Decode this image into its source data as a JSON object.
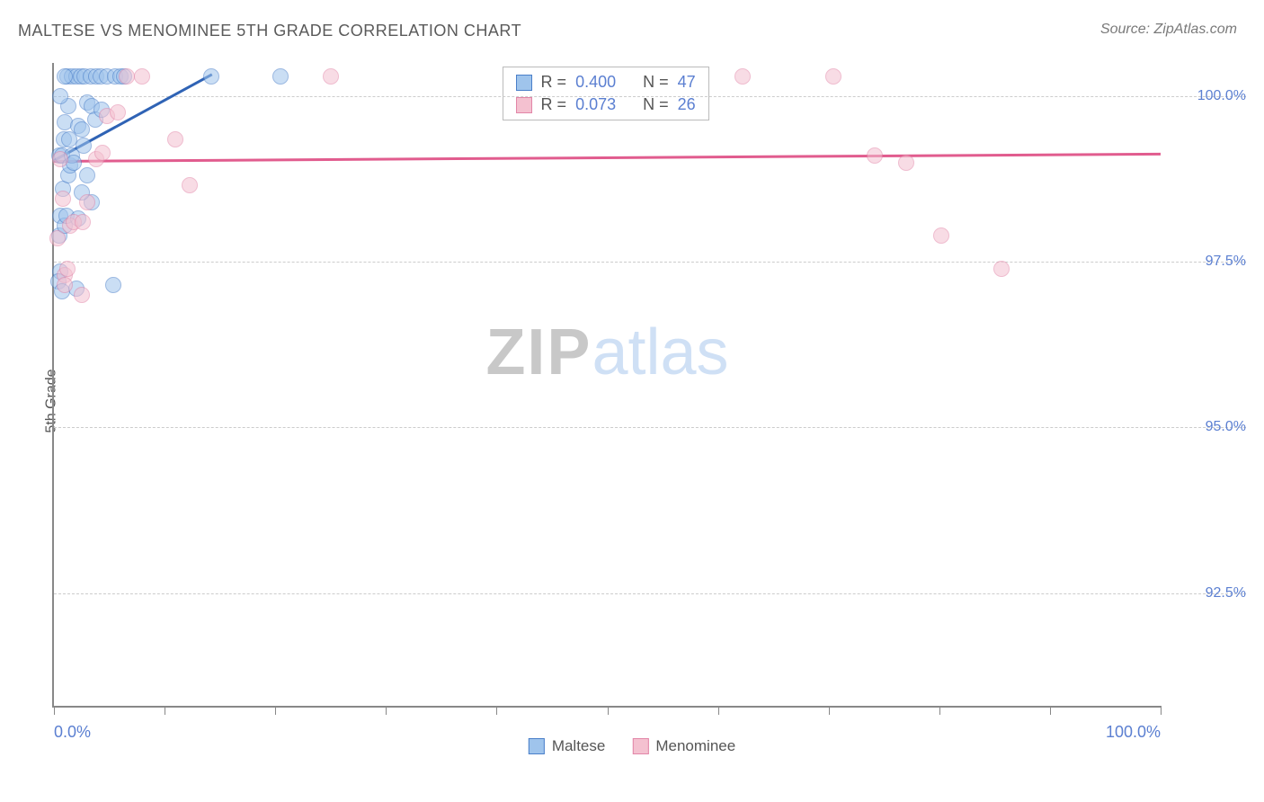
{
  "title": "MALTESE VS MENOMINEE 5TH GRADE CORRELATION CHART",
  "source": "Source: ZipAtlas.com",
  "ylabel": "5th Grade",
  "watermark": {
    "part1": "ZIP",
    "part2": "atlas"
  },
  "chart": {
    "type": "scatter",
    "background_color": "#ffffff",
    "grid_color": "#cccccc",
    "axis_color": "#888888",
    "xlim": [
      0,
      100
    ],
    "ylim": [
      90.8,
      100.5
    ],
    "x_tick_positions": [
      0,
      10,
      20,
      30,
      40,
      50,
      60,
      70,
      80,
      90,
      100
    ],
    "x_tick_labels_shown": {
      "0": "0.0%",
      "100": "100.0%"
    },
    "y_ticks": [
      {
        "v": 92.5,
        "label": "92.5%"
      },
      {
        "v": 95.0,
        "label": "95.0%"
      },
      {
        "v": 97.5,
        "label": "97.5%"
      },
      {
        "v": 100.0,
        "label": "100.0%"
      }
    ],
    "label_color": "#5b7fd1",
    "label_fontsize": 16,
    "title_fontsize": 18,
    "title_color": "#5a5a5a",
    "marker_radius": 9,
    "marker_opacity": 0.55,
    "series": [
      {
        "name": "Maltese",
        "fill": "#9fc4ec",
        "stroke": "#4a7fc9",
        "R": "0.400",
        "N": "47",
        "trend": {
          "x1": 0,
          "y1": 99.05,
          "x2": 14.3,
          "y2": 100.35,
          "color": "#2f63b5",
          "width": 2.5
        },
        "points": [
          {
            "x": 0.5,
            "y": 99.1
          },
          {
            "x": 0.7,
            "y": 99.1
          },
          {
            "x": 0.8,
            "y": 98.6
          },
          {
            "x": 0.6,
            "y": 98.2
          },
          {
            "x": 0.5,
            "y": 97.9
          },
          {
            "x": 0.6,
            "y": 97.35
          },
          {
            "x": 0.4,
            "y": 97.2
          },
          {
            "x": 0.7,
            "y": 97.05
          },
          {
            "x": 1.0,
            "y": 98.05
          },
          {
            "x": 1.1,
            "y": 98.2
          },
          {
            "x": 1.3,
            "y": 98.8
          },
          {
            "x": 1.5,
            "y": 98.95
          },
          {
            "x": 1.6,
            "y": 99.1
          },
          {
            "x": 1.0,
            "y": 99.6
          },
          {
            "x": 1.3,
            "y": 99.85
          },
          {
            "x": 1.2,
            "y": 100.3
          },
          {
            "x": 1.6,
            "y": 100.3
          },
          {
            "x": 2.0,
            "y": 100.3
          },
          {
            "x": 2.4,
            "y": 100.3
          },
          {
            "x": 2.8,
            "y": 100.3
          },
          {
            "x": 3.3,
            "y": 100.3
          },
          {
            "x": 3.8,
            "y": 100.3
          },
          {
            "x": 4.2,
            "y": 100.3
          },
          {
            "x": 4.8,
            "y": 100.3
          },
          {
            "x": 5.5,
            "y": 100.3
          },
          {
            "x": 6.0,
            "y": 100.3
          },
          {
            "x": 6.3,
            "y": 100.3
          },
          {
            "x": 2.2,
            "y": 99.55
          },
          {
            "x": 2.5,
            "y": 99.5
          },
          {
            "x": 2.7,
            "y": 99.25
          },
          {
            "x": 3.0,
            "y": 99.9
          },
          {
            "x": 3.4,
            "y": 99.85
          },
          {
            "x": 3.7,
            "y": 99.65
          },
          {
            "x": 4.3,
            "y": 99.8
          },
          {
            "x": 3.0,
            "y": 98.8
          },
          {
            "x": 3.4,
            "y": 98.4
          },
          {
            "x": 2.2,
            "y": 98.15
          },
          {
            "x": 2.0,
            "y": 97.1
          },
          {
            "x": 5.4,
            "y": 97.15
          },
          {
            "x": 14.2,
            "y": 100.3
          },
          {
            "x": 20.5,
            "y": 100.3
          },
          {
            "x": 1.0,
            "y": 100.3
          },
          {
            "x": 0.6,
            "y": 100.0
          },
          {
            "x": 1.8,
            "y": 99.0
          },
          {
            "x": 2.5,
            "y": 98.55
          },
          {
            "x": 0.9,
            "y": 99.35
          },
          {
            "x": 1.4,
            "y": 99.35
          }
        ]
      },
      {
        "name": "Menominee",
        "fill": "#f4c1d0",
        "stroke": "#e286a8",
        "R": "0.073",
        "N": "26",
        "trend": {
          "x1": 0,
          "y1": 99.04,
          "x2": 100,
          "y2": 99.15,
          "color": "#e15c8e",
          "width": 2.5
        },
        "points": [
          {
            "x": 0.6,
            "y": 99.05
          },
          {
            "x": 0.8,
            "y": 98.45
          },
          {
            "x": 1.0,
            "y": 97.3
          },
          {
            "x": 1.0,
            "y": 97.15
          },
          {
            "x": 1.2,
            "y": 97.4
          },
          {
            "x": 1.5,
            "y": 98.05
          },
          {
            "x": 1.8,
            "y": 98.1
          },
          {
            "x": 2.5,
            "y": 97.0
          },
          {
            "x": 2.6,
            "y": 98.1
          },
          {
            "x": 3.0,
            "y": 98.4
          },
          {
            "x": 3.8,
            "y": 99.05
          },
          {
            "x": 4.4,
            "y": 99.15
          },
          {
            "x": 4.8,
            "y": 99.7
          },
          {
            "x": 5.8,
            "y": 99.75
          },
          {
            "x": 6.6,
            "y": 100.3
          },
          {
            "x": 8.0,
            "y": 100.3
          },
          {
            "x": 12.3,
            "y": 98.65
          },
          {
            "x": 11.0,
            "y": 99.35
          },
          {
            "x": 25.0,
            "y": 100.3
          },
          {
            "x": 62.2,
            "y": 100.3
          },
          {
            "x": 70.4,
            "y": 100.3
          },
          {
            "x": 74.2,
            "y": 99.1
          },
          {
            "x": 77.0,
            "y": 99.0
          },
          {
            "x": 80.2,
            "y": 97.9
          },
          {
            "x": 85.6,
            "y": 97.4
          },
          {
            "x": 0.3,
            "y": 97.85
          }
        ]
      }
    ]
  },
  "stats_labels": {
    "R": "R =",
    "N": "N ="
  },
  "bottom_legend": [
    "Maltese",
    "Menominee"
  ]
}
